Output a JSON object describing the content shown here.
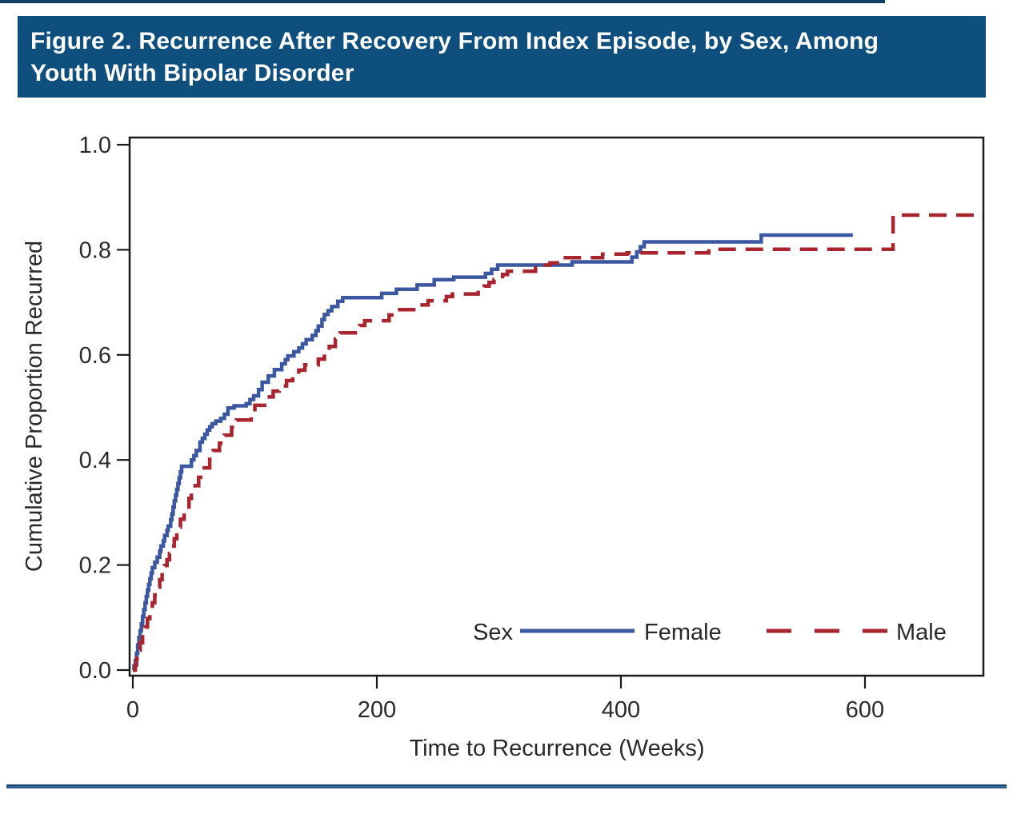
{
  "header": {
    "title_line1": "Figure 2. Recurrence After Recovery From Index Episode, by Sex, Among",
    "title_line2": "Youth With Bipolar Disorder"
  },
  "colors": {
    "title_bar_background": "#0E4F7E",
    "title_text": "#ffffff",
    "female_line": "#3B57A0",
    "male_line": "#A8242F",
    "axis": "#1a1a1a"
  },
  "chart_data": {
    "type": "line",
    "subtype": "kaplan-meier-step",
    "title": "",
    "xlabel": "Time to Recurrence (Weeks)",
    "ylabel": "Cumulative Proportion Recurred",
    "xlim": [
      0,
      700
    ],
    "ylim": [
      0.0,
      1.0
    ],
    "x_ticks": [
      0,
      200,
      400,
      600
    ],
    "x_tick_labels": [
      "0",
      "200",
      "400",
      "600"
    ],
    "y_ticks": [
      0.0,
      0.2,
      0.4,
      0.6,
      0.8,
      1.0
    ],
    "y_tick_labels": [
      "0.0",
      "0.2",
      "0.4",
      "0.6",
      "0.8",
      "1.0"
    ],
    "grid": false,
    "legend": {
      "label": "Sex",
      "position": "inside-bottom",
      "entries": [
        {
          "name": "Female",
          "style": "solid",
          "color": "#3B57A0"
        },
        {
          "name": "Male",
          "style": "dashed",
          "color": "#A8242F"
        }
      ]
    },
    "series": [
      {
        "name": "Female",
        "color": "#3B57A0",
        "line": "solid",
        "end_x": 590,
        "points": [
          [
            0,
            0
          ],
          [
            1,
            0.008
          ],
          [
            2,
            0.018
          ],
          [
            3,
            0.032
          ],
          [
            4,
            0.048
          ],
          [
            5,
            0.062
          ],
          [
            6,
            0.075
          ],
          [
            7,
            0.088
          ],
          [
            8,
            0.102
          ],
          [
            9,
            0.115
          ],
          [
            10,
            0.128
          ],
          [
            11,
            0.14
          ],
          [
            12,
            0.152
          ],
          [
            13,
            0.163
          ],
          [
            14,
            0.174
          ],
          [
            15,
            0.185
          ],
          [
            16,
            0.195
          ],
          [
            18,
            0.205
          ],
          [
            20,
            0.215
          ],
          [
            22,
            0.226
          ],
          [
            23,
            0.236
          ],
          [
            25,
            0.246
          ],
          [
            26,
            0.256
          ],
          [
            28,
            0.266
          ],
          [
            29,
            0.274
          ],
          [
            31,
            0.286
          ],
          [
            32,
            0.297
          ],
          [
            33,
            0.31
          ],
          [
            34,
            0.322
          ],
          [
            35,
            0.333
          ],
          [
            36,
            0.344
          ],
          [
            37,
            0.355
          ],
          [
            38,
            0.366
          ],
          [
            39,
            0.377
          ],
          [
            40,
            0.388
          ],
          [
            48,
            0.4
          ],
          [
            50,
            0.408
          ],
          [
            52,
            0.418
          ],
          [
            55,
            0.434
          ],
          [
            57,
            0.441
          ],
          [
            59,
            0.449
          ],
          [
            61,
            0.457
          ],
          [
            63,
            0.463
          ],
          [
            65,
            0.469
          ],
          [
            68,
            0.474
          ],
          [
            72,
            0.479
          ],
          [
            75,
            0.487
          ],
          [
            78,
            0.499
          ],
          [
            83,
            0.503
          ],
          [
            93,
            0.507
          ],
          [
            96,
            0.515
          ],
          [
            99,
            0.522
          ],
          [
            103,
            0.534
          ],
          [
            106,
            0.548
          ],
          [
            111,
            0.56
          ],
          [
            116,
            0.572
          ],
          [
            122,
            0.583
          ],
          [
            125,
            0.591
          ],
          [
            127,
            0.598
          ],
          [
            132,
            0.606
          ],
          [
            136,
            0.613
          ],
          [
            139,
            0.621
          ],
          [
            142,
            0.629
          ],
          [
            147,
            0.637
          ],
          [
            150,
            0.646
          ],
          [
            152,
            0.655
          ],
          [
            155,
            0.667
          ],
          [
            157,
            0.677
          ],
          [
            160,
            0.684
          ],
          [
            163,
            0.692
          ],
          [
            168,
            0.702
          ],
          [
            172,
            0.709
          ],
          [
            204,
            0.717
          ],
          [
            216,
            0.725
          ],
          [
            233,
            0.733
          ],
          [
            247,
            0.743
          ],
          [
            263,
            0.748
          ],
          [
            289,
            0.755
          ],
          [
            294,
            0.763
          ],
          [
            299,
            0.771
          ],
          [
            360,
            0.777
          ],
          [
            409,
            0.786
          ],
          [
            413,
            0.796
          ],
          [
            416,
            0.806
          ],
          [
            419,
            0.815
          ],
          [
            515,
            0.828
          ]
        ]
      },
      {
        "name": "Male",
        "color": "#A8242F",
        "line": "dashed",
        "end_x": 700,
        "points": [
          [
            0,
            0
          ],
          [
            2,
            0.01
          ],
          [
            3,
            0.022
          ],
          [
            5,
            0.038
          ],
          [
            6,
            0.052
          ],
          [
            8,
            0.068
          ],
          [
            10,
            0.082
          ],
          [
            12,
            0.098
          ],
          [
            14,
            0.113
          ],
          [
            16,
            0.128
          ],
          [
            18,
            0.143
          ],
          [
            20,
            0.158
          ],
          [
            22,
            0.172
          ],
          [
            24,
            0.186
          ],
          [
            26,
            0.199
          ],
          [
            28,
            0.21
          ],
          [
            30,
            0.222
          ],
          [
            32,
            0.236
          ],
          [
            34,
            0.25
          ],
          [
            36,
            0.261
          ],
          [
            37,
            0.272
          ],
          [
            39,
            0.287
          ],
          [
            42,
            0.306
          ],
          [
            46,
            0.327
          ],
          [
            48,
            0.337
          ],
          [
            51,
            0.351
          ],
          [
            54,
            0.367
          ],
          [
            57,
            0.385
          ],
          [
            63,
            0.401
          ],
          [
            66,
            0.418
          ],
          [
            71,
            0.432
          ],
          [
            75,
            0.447
          ],
          [
            81,
            0.462
          ],
          [
            85,
            0.476
          ],
          [
            97,
            0.49
          ],
          [
            100,
            0.504
          ],
          [
            110,
            0.52
          ],
          [
            115,
            0.531
          ],
          [
            120,
            0.541
          ],
          [
            126,
            0.551
          ],
          [
            131,
            0.561
          ],
          [
            136,
            0.571
          ],
          [
            141,
            0.581
          ],
          [
            152,
            0.592
          ],
          [
            157,
            0.606
          ],
          [
            161,
            0.616
          ],
          [
            166,
            0.63
          ],
          [
            170,
            0.642
          ],
          [
            186,
            0.656
          ],
          [
            190,
            0.665
          ],
          [
            210,
            0.676
          ],
          [
            216,
            0.686
          ],
          [
            235,
            0.695
          ],
          [
            242,
            0.703
          ],
          [
            257,
            0.711
          ],
          [
            262,
            0.716
          ],
          [
            283,
            0.723
          ],
          [
            288,
            0.731
          ],
          [
            292,
            0.738
          ],
          [
            296,
            0.743
          ],
          [
            303,
            0.753
          ],
          [
            307,
            0.759
          ],
          [
            330,
            0.765
          ],
          [
            336,
            0.771
          ],
          [
            342,
            0.775
          ],
          [
            352,
            0.785
          ],
          [
            385,
            0.792
          ],
          [
            405,
            0.794
          ],
          [
            472,
            0.801
          ],
          [
            623,
            0.866
          ]
        ]
      }
    ]
  }
}
